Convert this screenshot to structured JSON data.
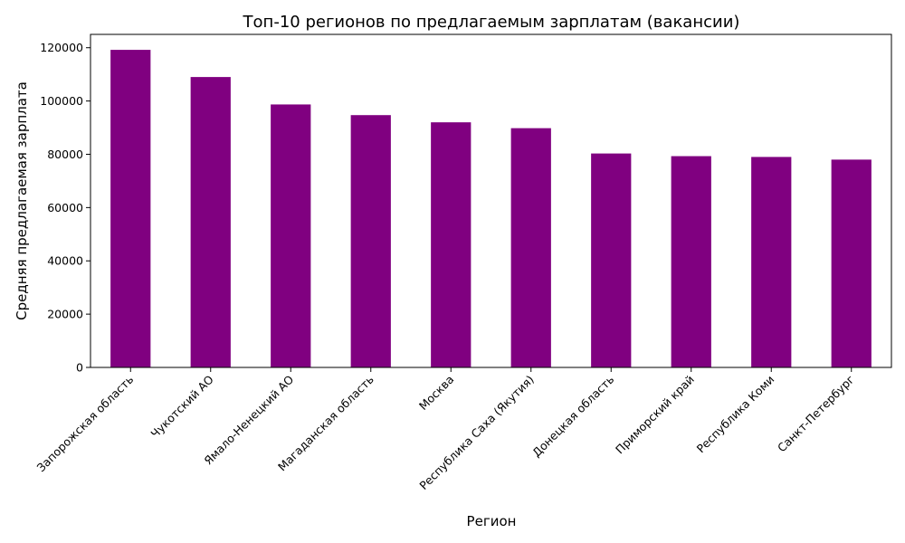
{
  "chart_data": {
    "type": "bar",
    "title": "Топ-10 регионов по предлагаемым зарплатам (вакансии)",
    "xlabel": "Регион",
    "ylabel": "Средняя предлагаемая зарплата",
    "categories": [
      "Запорожская область",
      "Чукотский АО",
      "Ямало-Ненецкий АО",
      "Магаданская область",
      "Москва",
      "Республика Саха (Якутия)",
      "Донецкая область",
      "Приморский край",
      "Республика Коми",
      "Санкт-Петербург"
    ],
    "values": [
      119200,
      109000,
      98700,
      94700,
      92000,
      89800,
      80300,
      79300,
      79000,
      78000
    ],
    "ylim": [
      0,
      125000
    ],
    "yticks": [
      0,
      20000,
      40000,
      60000,
      80000,
      100000,
      120000
    ],
    "bar_color": "#800080",
    "grid": false,
    "legend": "none"
  }
}
